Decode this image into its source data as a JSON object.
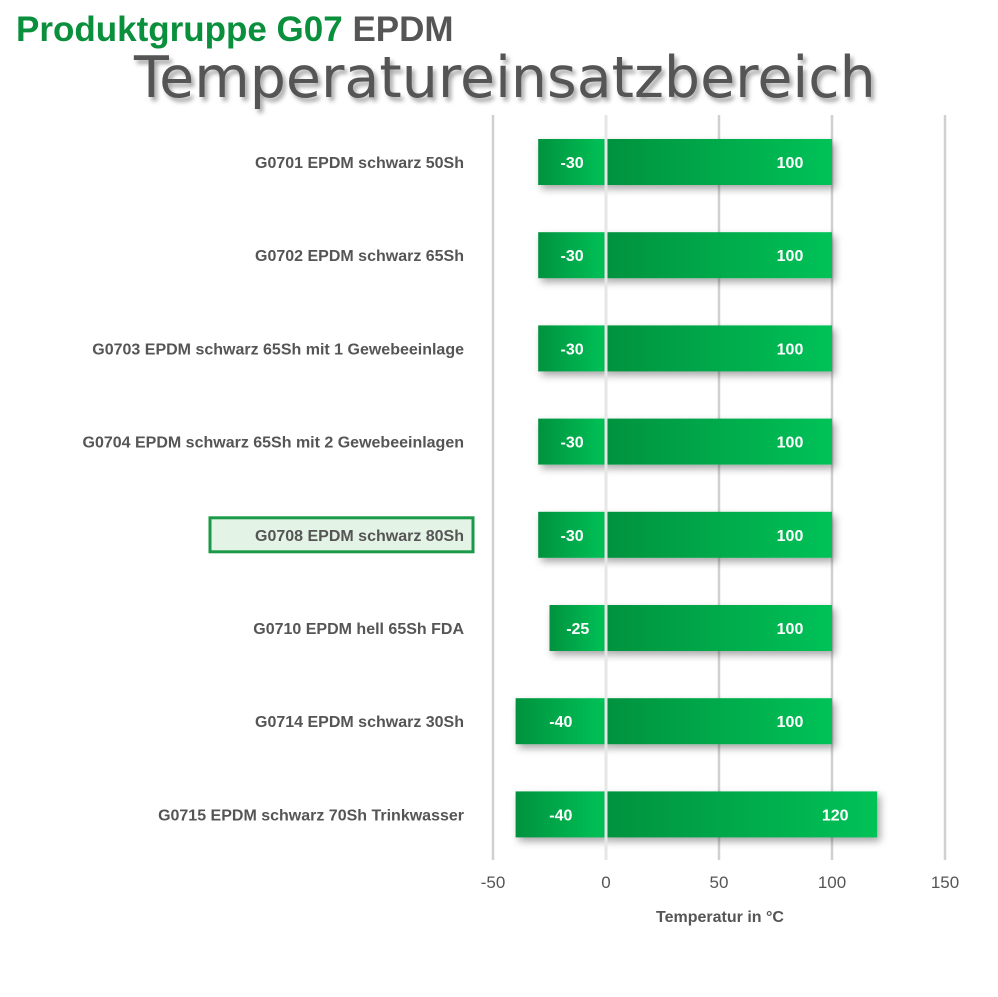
{
  "header": {
    "group_label": "Produktgruppe G07",
    "material": "EPDM",
    "title": "Temperatureinsatzbereich"
  },
  "colors": {
    "bar_dark": "#03923e",
    "bar_light": "#05c257",
    "highlight_border": "#1a9a48",
    "highlight_fill": "#e3f3e6",
    "grid": "#d0d0d0",
    "text": "#555555"
  },
  "chart_data": {
    "type": "bar",
    "orientation": "horizontal",
    "title": "Temperatureinsatzbereich",
    "xlabel": "Temperatur in °C",
    "ylabel": "",
    "xlim": [
      -50,
      150
    ],
    "xticks": [
      -50,
      0,
      50,
      100,
      150
    ],
    "grid": true,
    "highlighted_category": "G0708 EPDM schwarz 80Sh",
    "categories": [
      "G0701 EPDM schwarz 50Sh",
      "G0702 EPDM schwarz 65Sh",
      "G0703 EPDM schwarz 65Sh mit 1 Gewebeeinlage",
      "G0704 EPDM schwarz 65Sh mit 2 Gewebeeinlagen",
      "G0708 EPDM schwarz 80Sh",
      "G0710 EPDM hell 65Sh FDA",
      "G0714 EPDM schwarz 30Sh",
      "G0715 EPDM schwarz 70Sh Trinkwasser"
    ],
    "series": [
      {
        "values": [
          -30,
          -30,
          -30,
          -30,
          -30,
          -25,
          -40,
          -40
        ]
      },
      {
        "values": [
          100,
          100,
          100,
          100,
          100,
          100,
          100,
          120
        ]
      }
    ]
  }
}
